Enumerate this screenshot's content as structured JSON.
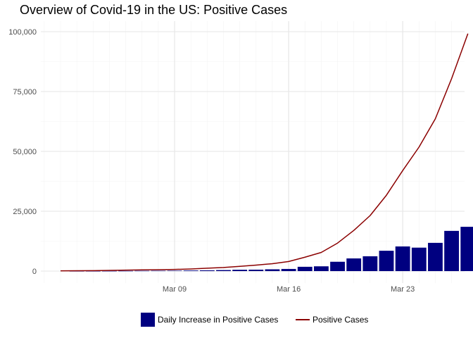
{
  "chart_data": {
    "type": "bar",
    "title": "Overview of Covid-19 in the US: Positive Cases",
    "xlabel": "",
    "ylabel": "",
    "x": [
      "Mar 02",
      "Mar 03",
      "Mar 04",
      "Mar 05",
      "Mar 06",
      "Mar 07",
      "Mar 08",
      "Mar 09",
      "Mar 10",
      "Mar 11",
      "Mar 12",
      "Mar 13",
      "Mar 14",
      "Mar 15",
      "Mar 16",
      "Mar 17",
      "Mar 18",
      "Mar 19",
      "Mar 20",
      "Mar 21",
      "Mar 22",
      "Mar 23",
      "Mar 24",
      "Mar 25",
      "Mar 26",
      "Mar 27",
      "Mar 28"
    ],
    "x_ticks": [
      "Mar 09",
      "Mar 16",
      "Mar 23"
    ],
    "ylim": [
      0,
      100000
    ],
    "y_ticks": [
      0,
      25000,
      50000,
      75000,
      100000
    ],
    "y_tick_labels": [
      "0",
      "25,000",
      "50,000",
      "75,000",
      "100,000"
    ],
    "grid": true,
    "legend_position": "bottom",
    "series": [
      {
        "name": "Daily Increase in Positive Cases",
        "type": "bar",
        "color": "#000080",
        "values": [
          0,
          30,
          40,
          60,
          90,
          120,
          150,
          180,
          250,
          320,
          430,
          560,
          600,
          750,
          900,
          1800,
          2000,
          3900,
          5300,
          6200,
          8500,
          10300,
          9800,
          11800,
          16800,
          18500,
          0
        ]
      },
      {
        "name": "Positive Cases",
        "type": "line",
        "color": "#8b0000",
        "values": [
          100,
          150,
          200,
          300,
          400,
          500,
          600,
          700,
          900,
          1200,
          1500,
          2000,
          2500,
          3100,
          4000,
          5800,
          7800,
          11700,
          17000,
          23200,
          31700,
          42000,
          51800,
          63600,
          80400,
          99200,
          null
        ]
      }
    ]
  },
  "legend": {
    "items": [
      {
        "label": "Daily Increase in Positive Cases",
        "color": "#000080",
        "kind": "bar"
      },
      {
        "label": "Positive Cases",
        "color": "#8b0000",
        "kind": "line"
      }
    ]
  }
}
